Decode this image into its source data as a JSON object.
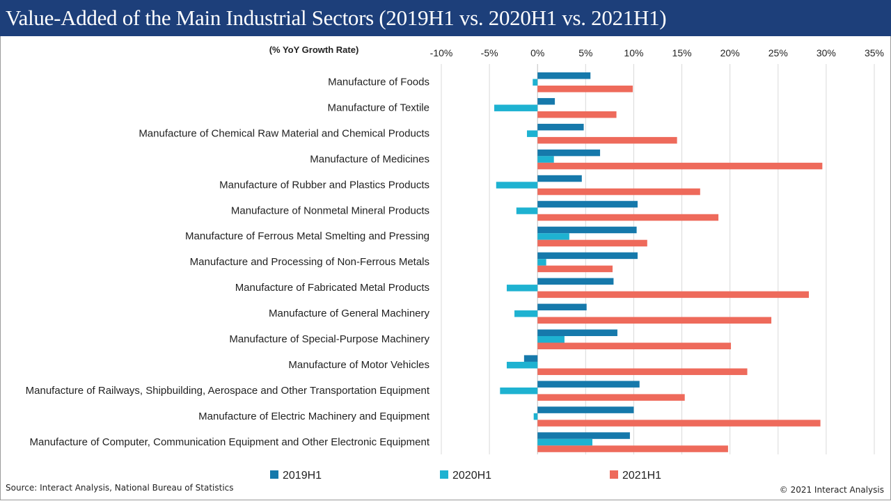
{
  "header": {
    "title": "Value-Added of the Main Industrial Sectors (2019H1 vs. 2020H1 vs. 2021H1)"
  },
  "footer": {
    "source": "Source: Interact Analysis, National Bureau of Statistics",
    "copyright": "© 2021 Interact Analysis"
  },
  "chart_data": {
    "type": "bar",
    "orientation": "horizontal",
    "ylabel": "(% YoY Growth Rate)",
    "xlim": [
      -10,
      35
    ],
    "xticks": [
      -10,
      -5,
      0,
      5,
      10,
      15,
      20,
      25,
      30,
      35
    ],
    "tick_labels": [
      "-10%",
      "-5%",
      "0%",
      "5%",
      "10%",
      "15%",
      "20%",
      "25%",
      "30%",
      "35%"
    ],
    "legend_position": "bottom",
    "categories": [
      "Manufacture of Foods",
      "Manufacture of Textile",
      "Manufacture of Chemical Raw Material and Chemical Products",
      "Manufacture of Medicines",
      "Manufacture of Rubber and Plastics Products",
      "Manufacture of Nonmetal Mineral Products",
      "Manufacture of Ferrous Metal Smelting and Pressing",
      "Manufacture and Processing of Non-Ferrous Metals",
      "Manufacture of Fabricated Metal Products",
      "Manufacture of General Machinery",
      "Manufacture of Special-Purpose Machinery",
      "Manufacture of Motor Vehicles",
      "Manufacture of Railways, Shipbuilding, Aerospace and Other Transportation Equipment",
      "Manufacture of Electric Machinery and Equipment",
      "Manufacture of Computer, Communication Equipment and Other Electronic Equipment"
    ],
    "series": [
      {
        "name": "2019H1",
        "color": "#1679ab",
        "values": [
          5.5,
          1.8,
          4.8,
          6.5,
          4.6,
          10.4,
          10.3,
          10.4,
          7.9,
          5.1,
          8.3,
          -1.4,
          10.6,
          10.0,
          9.6
        ]
      },
      {
        "name": "2020H1",
        "color": "#1eb2d1",
        "values": [
          -0.5,
          -4.5,
          -1.1,
          1.7,
          -4.3,
          -2.2,
          3.3,
          0.9,
          -3.2,
          -2.4,
          2.8,
          -3.2,
          -3.9,
          -0.4,
          5.7
        ]
      },
      {
        "name": "2021H1",
        "color": "#ee6a5b",
        "values": [
          9.9,
          8.2,
          14.5,
          29.6,
          16.9,
          18.8,
          11.4,
          7.8,
          28.2,
          24.3,
          20.1,
          21.8,
          15.3,
          29.4,
          19.8
        ]
      }
    ]
  }
}
